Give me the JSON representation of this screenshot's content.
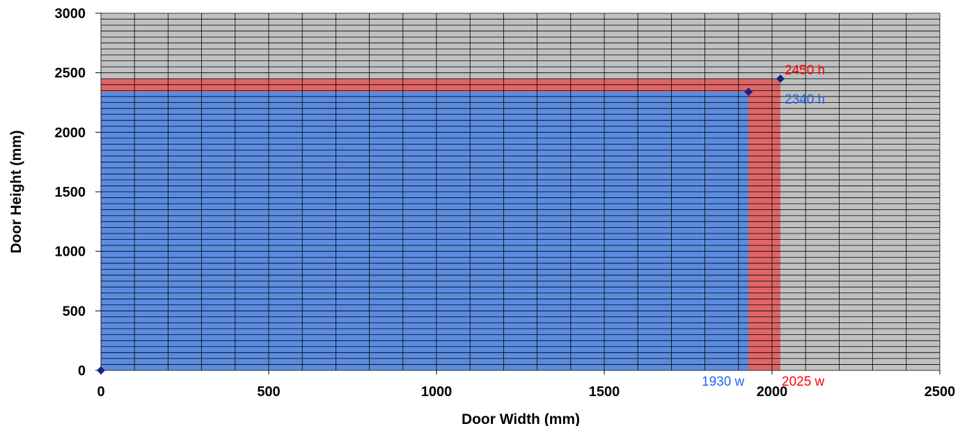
{
  "chart_data": {
    "type": "scatter",
    "xlabel": "Door Width (mm)",
    "ylabel": "Door Height (mm)",
    "xlim": [
      0,
      2500
    ],
    "ylim": [
      0,
      3000
    ],
    "x_ticks": [
      0,
      500,
      1000,
      1500,
      2000,
      2500
    ],
    "y_ticks": [
      0,
      500,
      1000,
      1500,
      2000,
      2500,
      3000
    ],
    "x_tick_labels": [
      "0",
      "500",
      "1000",
      "1500",
      "2000",
      "2500"
    ],
    "y_tick_labels": [
      "0",
      "500",
      "1000",
      "1500",
      "2000",
      "2500",
      "3000"
    ],
    "grid": true,
    "x_grid_step": 100,
    "y_grid_step": 50,
    "legend": "none",
    "regions": [
      {
        "x": [
          0,
          2025
        ],
        "y": [
          0,
          2450
        ],
        "color": "#e06666"
      },
      {
        "x": [
          0,
          1930
        ],
        "y": [
          0,
          2340
        ],
        "color": "#5b8ce0"
      }
    ],
    "series": [
      {
        "color": "#1a237e",
        "points": [
          {
            "x": 0,
            "y": 0
          },
          {
            "x": 1930,
            "y": 2340
          },
          {
            "x": 2025,
            "y": 2450
          }
        ]
      }
    ],
    "annotations": [
      {
        "text": "2450 h",
        "color": "#ff0000"
      },
      {
        "text": "2340 h",
        "color": "#1e64f0"
      },
      {
        "text": "1930 w",
        "color": "#1e64f0"
      },
      {
        "text": "2025 w",
        "color": "#ff0000"
      }
    ],
    "plot_background": "#c0c0c0",
    "grid_color": "#000000"
  }
}
